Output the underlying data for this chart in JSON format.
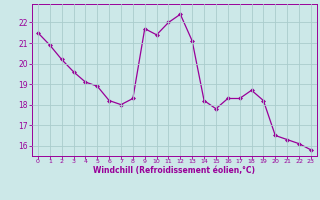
{
  "x": [
    0,
    1,
    2,
    3,
    4,
    5,
    6,
    7,
    8,
    9,
    10,
    11,
    12,
    13,
    14,
    15,
    16,
    17,
    18,
    19,
    20,
    21,
    22,
    23
  ],
  "y": [
    21.5,
    20.9,
    20.2,
    19.6,
    19.1,
    18.9,
    18.2,
    18.0,
    18.3,
    21.7,
    21.4,
    22.0,
    22.4,
    21.1,
    18.2,
    17.8,
    18.3,
    18.3,
    18.7,
    18.2,
    16.5,
    16.3,
    16.1,
    15.8
  ],
  "line_color": "#990099",
  "marker": "D",
  "markersize": 2.0,
  "linewidth": 0.9,
  "xlabel": "Windchill (Refroidissement éolien,°C)",
  "xlabel_color": "#990099",
  "bg_color": "#cce8e8",
  "grid_color": "#aacccc",
  "tick_color": "#990099",
  "ylim": [
    15.5,
    22.9
  ],
  "yticks": [
    16,
    17,
    18,
    19,
    20,
    21,
    22
  ],
  "xlim": [
    -0.5,
    23.5
  ],
  "xticks": [
    0,
    1,
    2,
    3,
    4,
    5,
    6,
    7,
    8,
    9,
    10,
    11,
    12,
    13,
    14,
    15,
    16,
    17,
    18,
    19,
    20,
    21,
    22,
    23
  ]
}
